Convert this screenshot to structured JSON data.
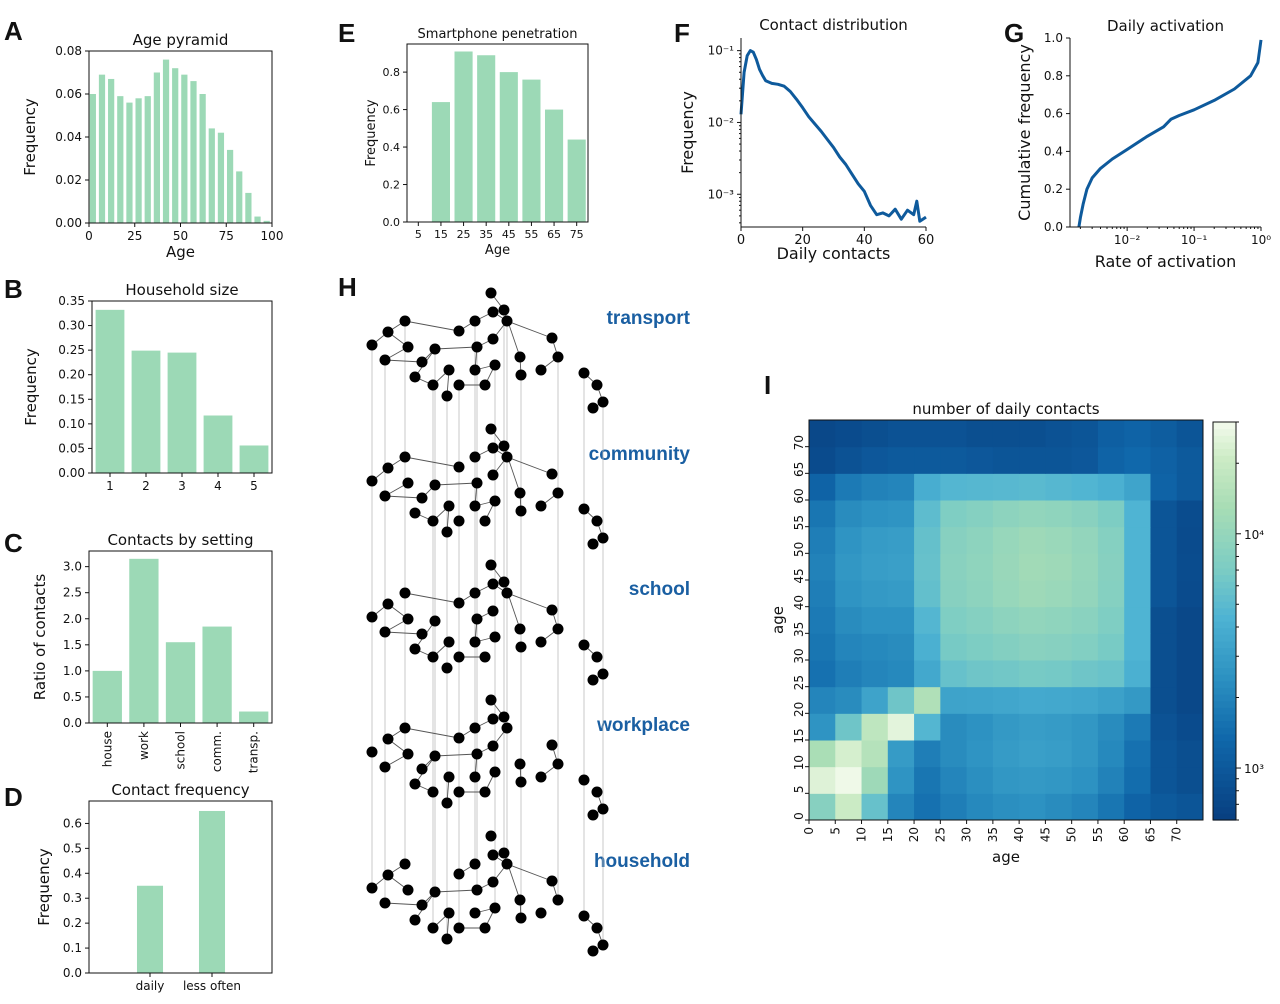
{
  "colors": {
    "bar": "#9cd9b6",
    "line": "#0e5a9c",
    "layer_label": "#1a5fa2",
    "node": "#000000",
    "edge": "#555555",
    "vline": "#bbbbbb"
  },
  "panels": {
    "A": "A",
    "B": "B",
    "C": "C",
    "D": "D",
    "E": "E",
    "F": "F",
    "G": "G",
    "H": "H",
    "I": "I"
  },
  "network": {
    "layers": [
      "transport",
      "community",
      "school",
      "workplace",
      "household"
    ]
  },
  "chart_data": [
    {
      "id": "A",
      "type": "bar",
      "title": "Age pyramid",
      "xlabel": "Age",
      "ylabel": "Frequency",
      "x": [
        0,
        5,
        10,
        15,
        20,
        25,
        30,
        35,
        40,
        45,
        50,
        55,
        60,
        65,
        70,
        75,
        80,
        85,
        90,
        95
      ],
      "values": [
        0.06,
        0.069,
        0.067,
        0.059,
        0.056,
        0.058,
        0.059,
        0.07,
        0.076,
        0.072,
        0.069,
        0.066,
        0.06,
        0.044,
        0.042,
        0.034,
        0.024,
        0.014,
        0.003,
        0.001
      ],
      "xlim": [
        0,
        100
      ],
      "ylim": [
        0,
        0.08
      ],
      "xticks": [
        0,
        25,
        50,
        75,
        100
      ],
      "yticks": [
        0.0,
        0.02,
        0.04,
        0.06,
        0.08
      ],
      "ytick_labels": [
        "0.00",
        "0.02",
        "0.04",
        "0.06",
        "0.08"
      ]
    },
    {
      "id": "B",
      "type": "bar",
      "title": "Household size",
      "xlabel": "",
      "ylabel": "Frequency",
      "categories": [
        "1",
        "2",
        "3",
        "4",
        "5"
      ],
      "values": [
        0.332,
        0.249,
        0.245,
        0.117,
        0.056
      ],
      "ylim": [
        0,
        0.35
      ],
      "yticks": [
        0,
        0.05,
        0.1,
        0.15,
        0.2,
        0.25,
        0.3,
        0.35
      ],
      "ytick_labels": [
        "0.00",
        "0.05",
        "0.10",
        "0.15",
        "0.20",
        "0.25",
        "0.30",
        "0.35"
      ]
    },
    {
      "id": "C",
      "type": "bar",
      "title": "Contacts by setting",
      "xlabel": "",
      "ylabel": "Ratio of contacts",
      "categories": [
        "house",
        "work",
        "school",
        "comm.",
        "transp."
      ],
      "values": [
        1.0,
        3.15,
        1.55,
        1.85,
        0.22
      ],
      "ylim": [
        0,
        3.3
      ],
      "yticks": [
        0,
        0.5,
        1,
        1.5,
        2,
        2.5,
        3
      ],
      "ytick_labels": [
        "0.0",
        "0.5",
        "1.0",
        "1.5",
        "2.0",
        "2.5",
        "3.0"
      ]
    },
    {
      "id": "D",
      "type": "bar",
      "title": "Contact frequency",
      "xlabel": "",
      "ylabel": "Frequency",
      "categories": [
        "daily",
        "less often"
      ],
      "values": [
        0.35,
        0.65
      ],
      "ylim": [
        0,
        0.69
      ],
      "yticks": [
        0,
        0.1,
        0.2,
        0.3,
        0.4,
        0.5,
        0.6
      ],
      "ytick_labels": [
        "0.0",
        "0.1",
        "0.2",
        "0.3",
        "0.4",
        "0.5",
        "0.6"
      ]
    },
    {
      "id": "E",
      "type": "bar",
      "title": "Smartphone penetration",
      "xlabel": "Age",
      "ylabel": "Frequency",
      "categories": [
        "5",
        "15",
        "25",
        "35",
        "45",
        "55",
        "65",
        "75"
      ],
      "values": [
        0,
        0.64,
        0.91,
        0.89,
        0.8,
        0.76,
        0.6,
        0.44
      ],
      "ylim": [
        0,
        0.95
      ],
      "yticks": [
        0,
        0.2,
        0.4,
        0.6,
        0.8
      ],
      "ytick_labels": [
        "0.0",
        "0.2",
        "0.4",
        "0.6",
        "0.8"
      ]
    },
    {
      "id": "F",
      "type": "line",
      "title": "Contact distribution",
      "xlabel": "Daily contacts",
      "ylabel": "Frequency",
      "yscale": "log",
      "x": [
        0,
        1,
        2,
        3,
        4,
        5,
        6,
        7,
        8,
        10,
        12,
        14,
        16,
        18,
        20,
        22,
        24,
        26,
        28,
        30,
        32,
        34,
        36,
        38,
        40,
        42,
        44,
        46,
        48,
        50,
        52,
        54,
        56,
        57,
        58,
        60
      ],
      "y": [
        0.013,
        0.05,
        0.085,
        0.1,
        0.095,
        0.075,
        0.055,
        0.045,
        0.038,
        0.035,
        0.034,
        0.032,
        0.027,
        0.021,
        0.016,
        0.012,
        0.0095,
        0.0075,
        0.0058,
        0.0045,
        0.0033,
        0.0026,
        0.0019,
        0.0014,
        0.0011,
        0.0007,
        0.00052,
        0.00055,
        0.0005,
        0.00062,
        0.00045,
        0.0006,
        0.00052,
        0.0008,
        0.00042,
        0.00048
      ],
      "xlim": [
        0,
        60
      ],
      "ylim": [
        0.00035,
        0.15
      ],
      "xticks": [
        0,
        20,
        40,
        60
      ],
      "yticks": [
        0.001,
        0.01,
        0.1
      ],
      "ytick_labels": [
        "10⁻³",
        "10⁻²",
        "10⁻¹"
      ]
    },
    {
      "id": "G",
      "type": "line",
      "title": "Daily activation",
      "xlabel": "Rate of activation",
      "ylabel": "Cumulative frequency",
      "xscale": "log",
      "x": [
        0.0019,
        0.002,
        0.0022,
        0.0025,
        0.003,
        0.004,
        0.006,
        0.01,
        0.02,
        0.035,
        0.045,
        0.06,
        0.1,
        0.2,
        0.4,
        0.7,
        0.9,
        1.0
      ],
      "y": [
        0.0,
        0.05,
        0.12,
        0.2,
        0.26,
        0.31,
        0.36,
        0.41,
        0.48,
        0.53,
        0.57,
        0.59,
        0.62,
        0.67,
        0.73,
        0.8,
        0.87,
        0.99
      ],
      "xlim": [
        0.0014,
        1
      ],
      "ylim": [
        0,
        1
      ],
      "xticks": [
        0.01,
        0.1,
        1
      ],
      "xtick_labels": [
        "10⁻²",
        "10⁻¹",
        "10⁰"
      ],
      "yticks": [
        0,
        0.2,
        0.4,
        0.6,
        0.8,
        1.0
      ],
      "ytick_labels": [
        "0.0",
        "0.2",
        "0.4",
        "0.6",
        "0.8",
        "1.0"
      ]
    },
    {
      "id": "I",
      "type": "heatmap",
      "title": "number of daily contacts",
      "xlabel": "age",
      "ylabel": "age",
      "color_scale": "log",
      "vmin": 600,
      "vmax": 30000,
      "colorbar_ticks": [
        1000,
        10000
      ],
      "colorbar_tick_labels": [
        "10³",
        "10⁴"
      ],
      "age_ticks": [
        "0",
        "5",
        "10",
        "15",
        "20",
        "25",
        "30",
        "35",
        "40",
        "45",
        "50",
        "55",
        "60",
        "65",
        "70"
      ],
      "matrix_rows_from_age_0": [
        [
          8000,
          20000,
          5500,
          2000,
          1500,
          1800,
          2100,
          2300,
          2400,
          2200,
          2000,
          1600,
          1200,
          1000,
          900
        ],
        [
          24000,
          28000,
          11000,
          2500,
          1600,
          2000,
          2300,
          2600,
          2700,
          2600,
          2400,
          1900,
          1400,
          900,
          800
        ],
        [
          13000,
          22000,
          15000,
          2800,
          1800,
          2200,
          2500,
          2800,
          3000,
          2900,
          2600,
          2100,
          1500,
          900,
          800
        ],
        [
          2500,
          6000,
          17000,
          25000,
          4500,
          2200,
          2400,
          2700,
          2900,
          2800,
          2600,
          2200,
          1700,
          850,
          750
        ],
        [
          2000,
          2200,
          3200,
          6000,
          14000,
          3200,
          3300,
          3400,
          3600,
          3500,
          3400,
          3100,
          2700,
          800,
          700
        ],
        [
          1500,
          1800,
          2000,
          2100,
          3500,
          5500,
          6000,
          6200,
          6500,
          6400,
          6000,
          5700,
          4000,
          800,
          700
        ],
        [
          1600,
          2000,
          2100,
          2200,
          4000,
          6500,
          7000,
          7600,
          8200,
          8000,
          7500,
          6600,
          4300,
          800,
          700
        ],
        [
          1700,
          2200,
          2400,
          2400,
          4500,
          7200,
          7800,
          8700,
          9300,
          9000,
          8400,
          7200,
          4300,
          800,
          700
        ],
        [
          1800,
          2500,
          2700,
          2800,
          5300,
          8000,
          8700,
          10000,
          11000,
          10500,
          9500,
          7800,
          4300,
          900,
          750
        ],
        [
          1900,
          2600,
          2900,
          3000,
          5500,
          8300,
          9000,
          10300,
          11500,
          11000,
          9800,
          8000,
          4300,
          900,
          760
        ],
        [
          1800,
          2500,
          2800,
          2900,
          5400,
          8000,
          8700,
          10000,
          11000,
          10500,
          9500,
          7800,
          4300,
          900,
          750
        ],
        [
          1600,
          2200,
          2400,
          2500,
          5000,
          7200,
          7800,
          8700,
          9300,
          9000,
          8300,
          7000,
          4300,
          900,
          760
        ],
        [
          1200,
          1700,
          1900,
          2000,
          3800,
          4500,
          4600,
          4700,
          4800,
          4600,
          4400,
          4000,
          3300,
          1200,
          1000
        ],
        [
          750,
          850,
          950,
          1000,
          1000,
          1000,
          950,
          900,
          900,
          900,
          950,
          1200,
          1300,
          1150,
          1000
        ],
        [
          700,
          750,
          800,
          850,
          850,
          850,
          800,
          800,
          800,
          850,
          900,
          1100,
          1200,
          1050,
          900
        ]
      ]
    }
  ]
}
